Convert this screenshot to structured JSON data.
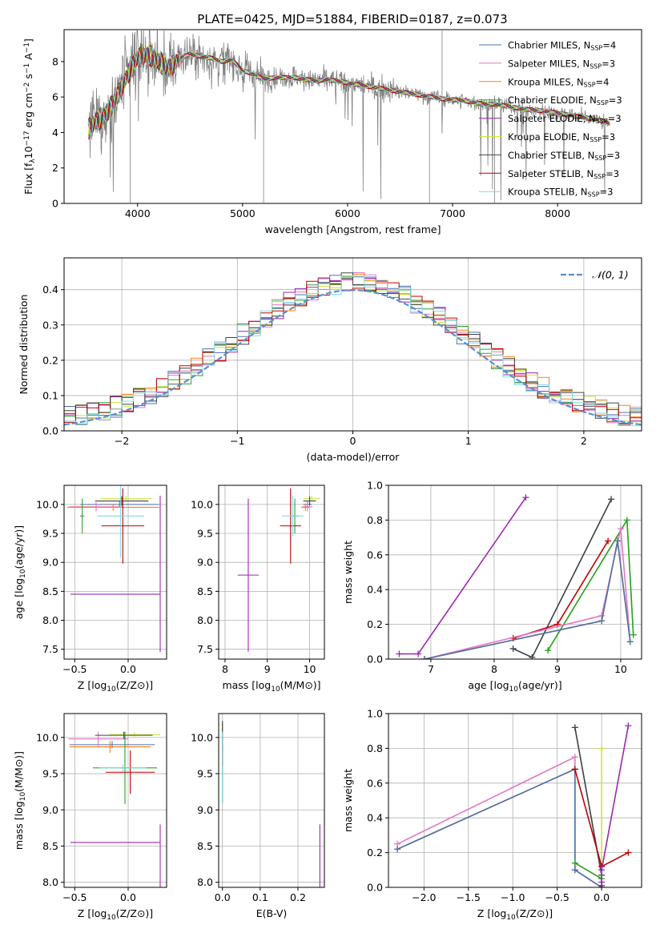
{
  "title": "PLATE=0425, MJD=51884, FIBERID=0187, z=0.073",
  "colors": {
    "Chabrier MILES": "#4c72b0",
    "Salpeter MILES": "#e377c2",
    "Kroupa MILES": "#ff7f0e",
    "Chabrier ELODIE": "#2ca02c",
    "Salpeter ELODIE": "#9c27b0",
    "Kroupa ELODIE": "#c6e83a",
    "Chabrier STELIB": "#444444",
    "Salpeter STELIB": "#c00000",
    "Kroupa STELIB": "#80d8e8",
    "data": "#808080",
    "gaussian": "#5b8fd0",
    "grid": "#b0b0b0"
  },
  "chart_data": [
    {
      "type": "line",
      "xlabel": "wavelength [Angstrom, rest frame]",
      "ylabel": "Flux [f_λ10^-17 erg cm^-2 s^-1 A^-1]",
      "xlim": [
        3300,
        8800
      ],
      "ylim": [
        0,
        9.8
      ],
      "xticks": [
        4000,
        5000,
        6000,
        7000,
        8000
      ],
      "yticks": [
        0,
        2,
        4,
        6,
        8
      ],
      "grid": false,
      "legend_position": "top-right",
      "legend": [
        {
          "model": "Chabrier MILES",
          "label": "Chabrier MILES, N",
          "sub": "SSP",
          "suffix": "=4"
        },
        {
          "model": "Salpeter MILES",
          "label": "Salpeter MILES, N",
          "sub": "SSP",
          "suffix": "=3"
        },
        {
          "model": "Kroupa MILES",
          "label": "Kroupa MILES, N",
          "sub": "SSP",
          "suffix": "=4"
        },
        {
          "model": "Chabrier ELODIE",
          "label": "Chabrier ELODIE, N",
          "sub": "SSP",
          "suffix": "=3"
        },
        {
          "model": "Salpeter ELODIE",
          "label": "Salpeter ELODIE, N",
          "sub": "SSP",
          "suffix": "=3"
        },
        {
          "model": "Kroupa ELODIE",
          "label": "Kroupa ELODIE, N",
          "sub": "SSP",
          "suffix": "=3"
        },
        {
          "model": "Chabrier STELIB",
          "label": "Chabrier STELIB, N",
          "sub": "SSP",
          "suffix": "=3"
        },
        {
          "model": "Salpeter STELIB",
          "label": "Salpeter STELIB, N",
          "sub": "SSP",
          "suffix": "=3"
        },
        {
          "model": "Kroupa STELIB",
          "label": "Kroupa STELIB, N",
          "sub": "SSP",
          "suffix": "=3"
        }
      ],
      "continuum": {
        "x": [
          3530,
          3600,
          3700,
          3800,
          3900,
          4000,
          4100,
          4200,
          4300,
          4400,
          4500,
          4600,
          4700,
          4800,
          4900,
          5000,
          5100,
          5200,
          5300,
          5400,
          5500,
          5600,
          5700,
          5800,
          5900,
          6000,
          6100,
          6200,
          6300,
          6400,
          6500,
          6600,
          6700,
          6800,
          6900,
          7000,
          7100,
          7200,
          7300,
          7400,
          7500,
          7600,
          7700,
          7800,
          7900,
          8000,
          8100,
          8200,
          8300,
          8400,
          8500
        ],
        "y": [
          4.2,
          4.6,
          5.0,
          6.0,
          7.2,
          8.2,
          8.4,
          8.0,
          7.6,
          8.2,
          8.4,
          8.3,
          8.2,
          8.0,
          8.1,
          7.5,
          7.3,
          7.0,
          7.1,
          7.1,
          7.1,
          7.0,
          6.9,
          7.0,
          6.9,
          6.8,
          6.7,
          6.6,
          6.5,
          6.4,
          6.3,
          6.2,
          6.1,
          6.0,
          5.9,
          5.85,
          5.8,
          5.7,
          5.6,
          5.6,
          5.5,
          5.4,
          5.3,
          5.25,
          5.2,
          5.1,
          5.0,
          4.9,
          4.8,
          4.7,
          4.5
        ]
      }
    },
    {
      "type": "histogram",
      "xlabel": "(data-model)/error",
      "ylabel": "Normed distribution",
      "xlim": [
        -2.5,
        2.5
      ],
      "ylim": [
        0,
        0.49
      ],
      "xticks": [
        -2,
        -1,
        0,
        1,
        2
      ],
      "yticks": [
        0.0,
        0.1,
        0.2,
        0.3,
        0.4
      ],
      "grid": true,
      "legend_position": "top-right",
      "gaussian_label": "𝒩(0, 1)",
      "bin_width": 0.1
    },
    {
      "type": "scatter",
      "xlabel": "Z [log10(Z/Z⊙)]",
      "ylabel": "age [log10(age/yr)]",
      "xlim": [
        -0.6,
        0.36
      ],
      "ylim": [
        7.33,
        10.33
      ],
      "xticks": [
        -0.5,
        0.0
      ],
      "yticks": [
        7.5,
        8.0,
        8.5,
        9.0,
        9.5,
        10.0
      ],
      "grid": true,
      "points": [
        {
          "model": "Chabrier MILES",
          "x": -0.08,
          "y": 10.0,
          "xerr": 0.37,
          "yerr": 0.05
        },
        {
          "model": "Salpeter MILES",
          "x": -0.3,
          "y": 9.96,
          "xerr": 0.25,
          "yerr": 0.08
        },
        {
          "model": "Kroupa MILES",
          "x": -0.14,
          "y": 9.95,
          "xerr": 0.43,
          "yerr": 0.06
        },
        {
          "model": "Chabrier ELODIE",
          "x": -0.43,
          "y": 9.8,
          "xerr": 0.02,
          "yerr": 0.3
        },
        {
          "model": "Salpeter ELODIE",
          "x": -0.12,
          "y": 8.45,
          "xerr": 0.42,
          "yerr": 0.0
        },
        {
          "model": "Salpeter ELODIE",
          "x": 0.3,
          "y": 8.8,
          "xerr": 0.0,
          "yerr": 1.35
        },
        {
          "model": "Kroupa ELODIE",
          "x": -0.02,
          "y": 10.1,
          "xerr": 0.24,
          "yerr": 0.05
        },
        {
          "model": "Chabrier STELIB",
          "x": -0.06,
          "y": 10.06,
          "xerr": 0.25,
          "yerr": 0.08
        },
        {
          "model": "Salpeter STELIB",
          "x": -0.05,
          "y": 9.63,
          "xerr": 0.2,
          "yerr": 0.65
        },
        {
          "model": "Kroupa STELIB",
          "x": -0.07,
          "y": 9.8,
          "xerr": 0.22,
          "yerr": 0.72
        }
      ]
    },
    {
      "type": "scatter",
      "xlabel": "mass [log10(M/M⊙)]",
      "ylabel": "",
      "xlim": [
        7.85,
        10.35
      ],
      "ylim": [
        7.33,
        10.33
      ],
      "xticks": [
        8,
        9,
        10
      ],
      "yticks": [
        7.5,
        8.0,
        8.5,
        9.0,
        9.5,
        10.0
      ],
      "grid": true,
      "points": [
        {
          "model": "Chabrier MILES",
          "x": 9.95,
          "y": 10.0,
          "xerr": 0.1,
          "yerr": 0.05
        },
        {
          "model": "Salpeter MILES",
          "x": 9.95,
          "y": 9.96,
          "xerr": 0.12,
          "yerr": 0.08
        },
        {
          "model": "Kroupa MILES",
          "x": 9.9,
          "y": 9.95,
          "xerr": 0.1,
          "yerr": 0.06
        },
        {
          "model": "Chabrier ELODIE",
          "x": 9.65,
          "y": 9.8,
          "xerr": 0.1,
          "yerr": 0.3
        },
        {
          "model": "Salpeter ELODIE",
          "x": 8.55,
          "y": 8.78,
          "xerr": 0.25,
          "yerr": 1.32
        },
        {
          "model": "Kroupa ELODIE",
          "x": 10.05,
          "y": 10.1,
          "xerr": 0.2,
          "yerr": 0.05
        },
        {
          "model": "Chabrier STELIB",
          "x": 10.0,
          "y": 10.06,
          "xerr": 0.15,
          "yerr": 0.08
        },
        {
          "model": "Salpeter STELIB",
          "x": 9.55,
          "y": 9.63,
          "xerr": 0.25,
          "yerr": 0.65
        },
        {
          "model": "Kroupa STELIB",
          "x": 9.6,
          "y": 9.8,
          "xerr": 0.25,
          "yerr": 0.35
        }
      ]
    },
    {
      "type": "line",
      "xlabel": "age [log10(age/yr)]",
      "ylabel": "mass weight",
      "xlim": [
        6.33,
        10.33
      ],
      "ylim": [
        0,
        1.0
      ],
      "xticks": [
        7,
        8,
        9,
        10
      ],
      "yticks": [
        0.0,
        0.2,
        0.4,
        0.6,
        0.8,
        1.0
      ],
      "grid": true,
      "series": [
        {
          "model": "Salpeter ELODIE",
          "x": [
            6.5,
            6.8,
            8.5
          ],
          "y": [
            0.03,
            0.03,
            0.93
          ]
        },
        {
          "model": "Kroupa STELIB",
          "x": [
            8.3,
            8.6,
            9.85
          ],
          "y": [
            0.06,
            0.01,
            0.92
          ]
        },
        {
          "model": "Chabrier STELIB",
          "x": [
            8.3,
            8.6,
            9.85
          ],
          "y": [
            0.06,
            0.01,
            0.92
          ]
        },
        {
          "model": "Kroupa ELODIE",
          "x": [
            8.85,
            10.1,
            10.2
          ],
          "y": [
            0.05,
            0.8,
            0.14
          ]
        },
        {
          "model": "Chabrier ELODIE",
          "x": [
            8.85,
            10.1,
            10.2
          ],
          "y": [
            0.05,
            0.8,
            0.14
          ]
        },
        {
          "model": "Salpeter STELIB",
          "x": [
            8.3,
            9.0,
            9.8
          ],
          "y": [
            0.12,
            0.2,
            0.68
          ]
        },
        {
          "model": "Salpeter MILES",
          "x": [
            6.9,
            9.7,
            10.0,
            10.15
          ],
          "y": [
            0.0,
            0.25,
            0.75,
            0.1
          ]
        },
        {
          "model": "Kroupa MILES",
          "x": [
            6.9,
            9.7,
            9.95,
            10.15
          ],
          "y": [
            0.0,
            0.22,
            0.68,
            0.1
          ]
        },
        {
          "model": "Chabrier MILES",
          "x": [
            6.9,
            9.7,
            9.95,
            10.15
          ],
          "y": [
            0.0,
            0.22,
            0.68,
            0.1
          ]
        }
      ]
    },
    {
      "type": "scatter",
      "xlabel": "Z [log10(Z/Z⊙)]",
      "ylabel": "mass [log10(M/M⊙)]",
      "xlim": [
        -0.6,
        0.36
      ],
      "ylim": [
        7.93,
        10.33
      ],
      "xticks": [
        -0.5,
        0.0
      ],
      "yticks": [
        8.0,
        8.5,
        9.0,
        9.5,
        10.0
      ],
      "grid": true,
      "points": [
        {
          "model": "Chabrier MILES",
          "x": -0.15,
          "y": 9.9,
          "xerr": 0.4,
          "yerr": 0.05
        },
        {
          "model": "Salpeter MILES",
          "x": -0.28,
          "y": 9.98,
          "xerr": 0.28,
          "yerr": 0.1
        },
        {
          "model": "Kroupa MILES",
          "x": -0.17,
          "y": 9.87,
          "xerr": 0.38,
          "yerr": 0.08
        },
        {
          "model": "Chabrier ELODIE",
          "x": -0.03,
          "y": 9.58,
          "xerr": 0.3,
          "yerr": 0.5
        },
        {
          "model": "Salpeter ELODIE",
          "x": -0.12,
          "y": 8.55,
          "xerr": 0.42,
          "yerr": 0.0
        },
        {
          "model": "Salpeter ELODIE",
          "x": 0.3,
          "y": 8.35,
          "xerr": 0.0,
          "yerr": 0.45
        },
        {
          "model": "Kroupa ELODIE",
          "x": 0.06,
          "y": 10.04,
          "xerr": 0.24,
          "yerr": 0.03
        },
        {
          "model": "Chabrier STELIB",
          "x": -0.04,
          "y": 10.03,
          "xerr": 0.27,
          "yerr": 0.05
        },
        {
          "model": "Salpeter STELIB",
          "x": 0.02,
          "y": 9.52,
          "xerr": 0.23,
          "yerr": 0.3
        },
        {
          "model": "Kroupa STELIB",
          "x": -0.05,
          "y": 9.58,
          "xerr": 0.22,
          "yerr": 0.05
        }
      ]
    },
    {
      "type": "scatter",
      "xlabel": "E(B-V)",
      "ylabel": "",
      "xlim": [
        -0.01,
        0.27
      ],
      "ylim": [
        7.93,
        10.33
      ],
      "xticks": [
        0.0,
        0.1,
        0.2
      ],
      "yticks": [
        8.0,
        8.5,
        9.0,
        9.5,
        10.0
      ],
      "grid": true,
      "points": [
        {
          "model": "Chabrier MILES",
          "x": 0.0,
          "y": 9.9,
          "xerr": 0.0,
          "yerr": 0.1
        },
        {
          "model": "Salpeter MILES",
          "x": 0.0,
          "y": 9.98,
          "xerr": 0.0,
          "yerr": 0.15
        },
        {
          "model": "Kroupa MILES",
          "x": 0.0,
          "y": 9.87,
          "xerr": 0.0,
          "yerr": 0.1
        },
        {
          "model": "Chabrier ELODIE",
          "x": 0.0,
          "y": 9.65,
          "xerr": 0.0,
          "yerr": 0.55
        },
        {
          "model": "Salpeter ELODIE",
          "x": 0.258,
          "y": 8.35,
          "xerr": 0.0,
          "yerr": 0.45
        },
        {
          "model": "Kroupa ELODIE",
          "x": 0.0,
          "y": 10.04,
          "xerr": 0.0,
          "yerr": 0.15
        },
        {
          "model": "Chabrier STELIB",
          "x": 0.0,
          "y": 10.03,
          "xerr": 0.0,
          "yerr": 0.2
        },
        {
          "model": "Salpeter STELIB",
          "x": 0.0,
          "y": 9.75,
          "xerr": 0.0,
          "yerr": 0.15
        },
        {
          "model": "Kroupa STELIB",
          "x": 0.0,
          "y": 9.58,
          "xerr": 0.0,
          "yerr": 0.5
        }
      ]
    },
    {
      "type": "line",
      "xlabel": "Z [log10(Z/Z⊙)]",
      "ylabel": "mass weight",
      "xlim": [
        -2.4,
        0.45
      ],
      "ylim": [
        0,
        1.0
      ],
      "xticks": [
        -2.0,
        -1.5,
        -1.0,
        -0.5,
        0.0
      ],
      "yticks": [
        0.0,
        0.2,
        0.4,
        0.6,
        0.8,
        1.0
      ],
      "grid": true,
      "series": [
        {
          "model": "Salpeter MILES",
          "x": [
            -2.3,
            -0.3,
            -0.3,
            0.0
          ],
          "y": [
            0.25,
            0.75,
            0.1,
            0.0
          ]
        },
        {
          "model": "Kroupa MILES",
          "x": [
            -2.3,
            -0.3,
            -0.3,
            0.0
          ],
          "y": [
            0.22,
            0.68,
            0.1,
            0.0
          ]
        },
        {
          "model": "Chabrier MILES",
          "x": [
            -2.3,
            -0.3,
            -0.3,
            0.0
          ],
          "y": [
            0.22,
            0.68,
            0.1,
            0.0
          ]
        },
        {
          "model": "Kroupa STELIB",
          "x": [
            -0.3,
            0.0,
            0.0
          ],
          "y": [
            0.92,
            0.07,
            0.01
          ]
        },
        {
          "model": "Chabrier STELIB",
          "x": [
            -0.3,
            0.0,
            0.0
          ],
          "y": [
            0.92,
            0.07,
            0.01
          ]
        },
        {
          "model": "Kroupa ELODIE",
          "x": [
            -0.3,
            0.0,
            0.0
          ],
          "y": [
            0.14,
            0.05,
            0.8
          ]
        },
        {
          "model": "Chabrier ELODIE",
          "x": [
            -0.3,
            0.0
          ],
          "y": [
            0.14,
            0.05
          ]
        },
        {
          "model": "Salpeter STELIB",
          "x": [
            -0.3,
            0.0,
            0.3
          ],
          "y": [
            0.68,
            0.12,
            0.2
          ]
        },
        {
          "model": "Salpeter ELODIE",
          "x": [
            0.0,
            0.0,
            0.3
          ],
          "y": [
            0.03,
            0.1,
            0.93
          ]
        }
      ]
    }
  ]
}
